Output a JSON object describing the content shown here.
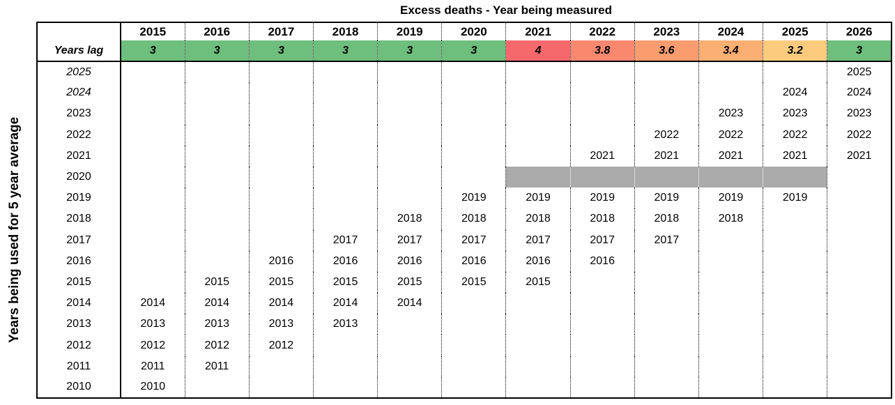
{
  "title": "Excess deaths - Year being measured",
  "y_axis_label": "Years being used for 5 year average",
  "lag_row_label": "Years lag",
  "colors": {
    "lag_green": "#6EBE7D",
    "lag_red": "#F5696C",
    "lag_salmon": "#F9886F",
    "lag_orange": "#FA9C6E",
    "lag_light_orange": "#FBAF72",
    "lag_yellow": "#FDCB7D",
    "excluded_gray": "#ABABAB"
  },
  "chart_data": {
    "type": "table",
    "title": "Excess deaths - Year being measured",
    "ylabel": "Years being used for 5 year average",
    "column_headers": [
      "2015",
      "2016",
      "2017",
      "2018",
      "2019",
      "2020",
      "2021",
      "2022",
      "2023",
      "2024",
      "2025",
      "2026"
    ],
    "years_lag": [
      {
        "value": "3",
        "color": "#6EBE7D"
      },
      {
        "value": "3",
        "color": "#6EBE7D"
      },
      {
        "value": "3",
        "color": "#6EBE7D"
      },
      {
        "value": "3",
        "color": "#6EBE7D"
      },
      {
        "value": "3",
        "color": "#6EBE7D"
      },
      {
        "value": "3",
        "color": "#6EBE7D"
      },
      {
        "value": "4",
        "color": "#F5696C"
      },
      {
        "value": "3.8",
        "color": "#F9886F"
      },
      {
        "value": "3.6",
        "color": "#FA9C6E"
      },
      {
        "value": "3.4",
        "color": "#FBAF72"
      },
      {
        "value": "3.2",
        "color": "#FDCB7D"
      },
      {
        "value": "3",
        "color": "#6EBE7D"
      }
    ],
    "rows": [
      {
        "label": "2025",
        "italic": true,
        "cells": [
          "",
          "",
          "",
          "",
          "",
          "",
          "",
          "",
          "",
          "",
          "",
          "2025"
        ]
      },
      {
        "label": "2024",
        "italic": true,
        "cells": [
          "",
          "",
          "",
          "",
          "",
          "",
          "",
          "",
          "",
          "",
          "2024",
          "2024"
        ]
      },
      {
        "label": "2023",
        "italic": false,
        "cells": [
          "",
          "",
          "",
          "",
          "",
          "",
          "",
          "",
          "",
          "2023",
          "2023",
          "2023"
        ]
      },
      {
        "label": "2022",
        "italic": false,
        "cells": [
          "",
          "",
          "",
          "",
          "",
          "",
          "",
          "",
          "2022",
          "2022",
          "2022",
          "2022"
        ]
      },
      {
        "label": "2021",
        "italic": false,
        "cells": [
          "",
          "",
          "",
          "",
          "",
          "",
          "",
          "2021",
          "2021",
          "2021",
          "2021",
          "2021"
        ]
      },
      {
        "label": "2020",
        "italic": false,
        "cells": [
          "",
          "",
          "",
          "",
          "",
          "",
          "",
          "",
          "",
          "",
          "",
          ""
        ],
        "gray_span": [
          6,
          10
        ]
      },
      {
        "label": "2019",
        "italic": false,
        "cells": [
          "",
          "",
          "",
          "",
          "",
          "2019",
          "2019",
          "2019",
          "2019",
          "2019",
          "2019",
          ""
        ]
      },
      {
        "label": "2018",
        "italic": false,
        "cells": [
          "",
          "",
          "",
          "",
          "2018",
          "2018",
          "2018",
          "2018",
          "2018",
          "2018",
          "",
          ""
        ]
      },
      {
        "label": "2017",
        "italic": false,
        "cells": [
          "",
          "",
          "",
          "2017",
          "2017",
          "2017",
          "2017",
          "2017",
          "2017",
          "",
          "",
          ""
        ]
      },
      {
        "label": "2016",
        "italic": false,
        "cells": [
          "",
          "",
          "2016",
          "2016",
          "2016",
          "2016",
          "2016",
          "2016",
          "",
          "",
          "",
          ""
        ]
      },
      {
        "label": "2015",
        "italic": false,
        "cells": [
          "",
          "2015",
          "2015",
          "2015",
          "2015",
          "2015",
          "2015",
          "",
          "",
          "",
          "",
          ""
        ]
      },
      {
        "label": "2014",
        "italic": false,
        "cells": [
          "2014",
          "2014",
          "2014",
          "2014",
          "2014",
          "",
          "",
          "",
          "",
          "",
          "",
          ""
        ]
      },
      {
        "label": "2013",
        "italic": false,
        "cells": [
          "2013",
          "2013",
          "2013",
          "2013",
          "",
          "",
          "",
          "",
          "",
          "",
          "",
          ""
        ]
      },
      {
        "label": "2012",
        "italic": false,
        "cells": [
          "2012",
          "2012",
          "2012",
          "",
          "",
          "",
          "",
          "",
          "",
          "",
          "",
          ""
        ]
      },
      {
        "label": "2011",
        "italic": false,
        "cells": [
          "2011",
          "2011",
          "",
          "",
          "",
          "",
          "",
          "",
          "",
          "",
          "",
          ""
        ]
      },
      {
        "label": "2010",
        "italic": false,
        "cells": [
          "2010",
          "",
          "",
          "",
          "",
          "",
          "",
          "",
          "",
          "",
          "",
          ""
        ]
      }
    ]
  }
}
